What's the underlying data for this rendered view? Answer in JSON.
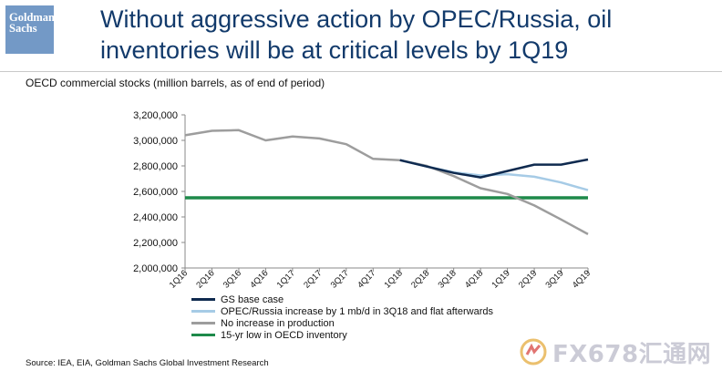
{
  "header": {
    "logo_line1": "Goldman",
    "logo_line2": "Sachs",
    "title": "Without aggressive action by OPEC/Russia, oil inventories will be at critical levels by 1Q19"
  },
  "subtitle": "OECD commercial stocks (million barrels, as of end of period)",
  "source": "Source: IEA, EIA, Goldman Sachs Global Investment Research",
  "watermark": {
    "text": "FX678汇通网",
    "icon": "fx678-logo-icon"
  },
  "chart_data": {
    "type": "line",
    "x": [
      "1Q16",
      "2Q16",
      "3Q16",
      "4Q16",
      "1Q17",
      "2Q17",
      "3Q17",
      "4Q17",
      "1Q18",
      "2Q18",
      "3Q18",
      "4Q18",
      "1Q19",
      "2Q19",
      "3Q19",
      "4Q19"
    ],
    "ylim": [
      2000000,
      3200000
    ],
    "yticks": [
      2000000,
      2200000,
      2400000,
      2600000,
      2800000,
      3000000,
      3200000
    ],
    "ytick_labels": [
      "2,000,000",
      "2,200,000",
      "2,400,000",
      "2,600,000",
      "2,800,000",
      "3,000,000",
      "3,200,000"
    ],
    "grid": false,
    "legend_position": "bottom-left",
    "series": [
      {
        "name": "GS base case",
        "color": "#0f2a4f",
        "values": [
          null,
          null,
          null,
          null,
          null,
          null,
          null,
          null,
          2845000,
          2795000,
          2745000,
          2710000,
          2760000,
          2810000,
          2810000,
          2850000
        ]
      },
      {
        "name": "OPEC/Russia increase by 1 mb/d in 3Q18 and flat afterwards",
        "color": "#a6cbe6",
        "values": [
          null,
          null,
          null,
          null,
          null,
          null,
          null,
          null,
          2845000,
          2795000,
          2750000,
          2725000,
          2735000,
          2715000,
          2670000,
          2610000
        ]
      },
      {
        "name": "No increase in production",
        "color": "#9d9d9d",
        "values": [
          3040000,
          3075000,
          3080000,
          3000000,
          3030000,
          3015000,
          2970000,
          2855000,
          2845000,
          2800000,
          2720000,
          2625000,
          2580000,
          2490000,
          2380000,
          2265000
        ]
      },
      {
        "name": "15-yr low in OECD inventory",
        "color": "#1e8a4a",
        "values": [
          2550000,
          2550000,
          2550000,
          2550000,
          2550000,
          2550000,
          2550000,
          2550000,
          2550000,
          2550000,
          2550000,
          2550000,
          2550000,
          2550000,
          2550000,
          2550000
        ]
      }
    ]
  }
}
